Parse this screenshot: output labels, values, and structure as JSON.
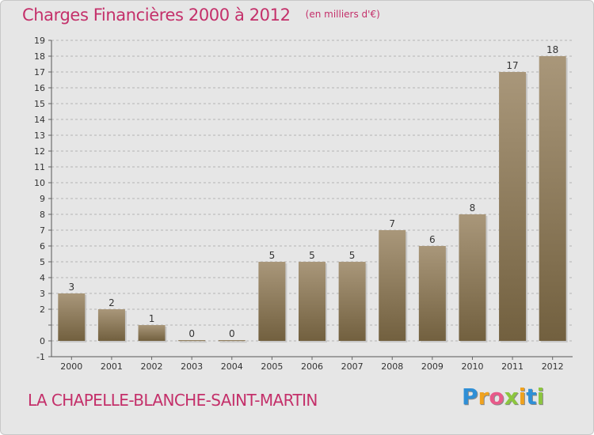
{
  "title": "Charges Financières 2000 à 2012",
  "subtitle": "(en milliers d'€)",
  "commune": "LA CHAPELLE-BLANCHE-SAINT-MARTIN",
  "brand": {
    "letters": [
      {
        "ch": "P",
        "color": "#2f8fd6"
      },
      {
        "ch": "r",
        "color": "#f0a21e"
      },
      {
        "ch": "o",
        "color": "#e85a8a"
      },
      {
        "ch": "x",
        "color": "#8cc63f"
      },
      {
        "ch": "i",
        "color": "#f0a21e"
      },
      {
        "ch": "t",
        "color": "#2f8fd6"
      },
      {
        "ch": "i",
        "color": "#8cc63f"
      }
    ]
  },
  "colors": {
    "accent": "#c4306a",
    "bar_top": "#a9977a",
    "bar_bottom": "#72603f",
    "background": "#e6e6e6"
  },
  "chart_data": {
    "type": "bar",
    "categories": [
      "2000",
      "2001",
      "2002",
      "2003",
      "2004",
      "2005",
      "2006",
      "2007",
      "2008",
      "2009",
      "2010",
      "2011",
      "2012"
    ],
    "values": [
      3,
      2,
      1,
      0,
      0,
      5,
      5,
      5,
      7,
      6,
      8,
      17,
      18
    ],
    "value_labels": [
      "3",
      "2",
      "1",
      "0",
      "0",
      "5",
      "5",
      "5",
      "7",
      "6",
      "8",
      "17",
      "18"
    ],
    "ylim": [
      -1,
      19
    ],
    "yticks": [
      "-1",
      "0",
      "",
      "2",
      "3",
      "4",
      "5",
      "6",
      "7",
      "8",
      "9",
      "10",
      "11",
      "12",
      "13",
      "14",
      "15",
      "16",
      "17",
      "18",
      "19"
    ],
    "grid": "horizontal dashed",
    "xlabel": "",
    "ylabel": ""
  }
}
